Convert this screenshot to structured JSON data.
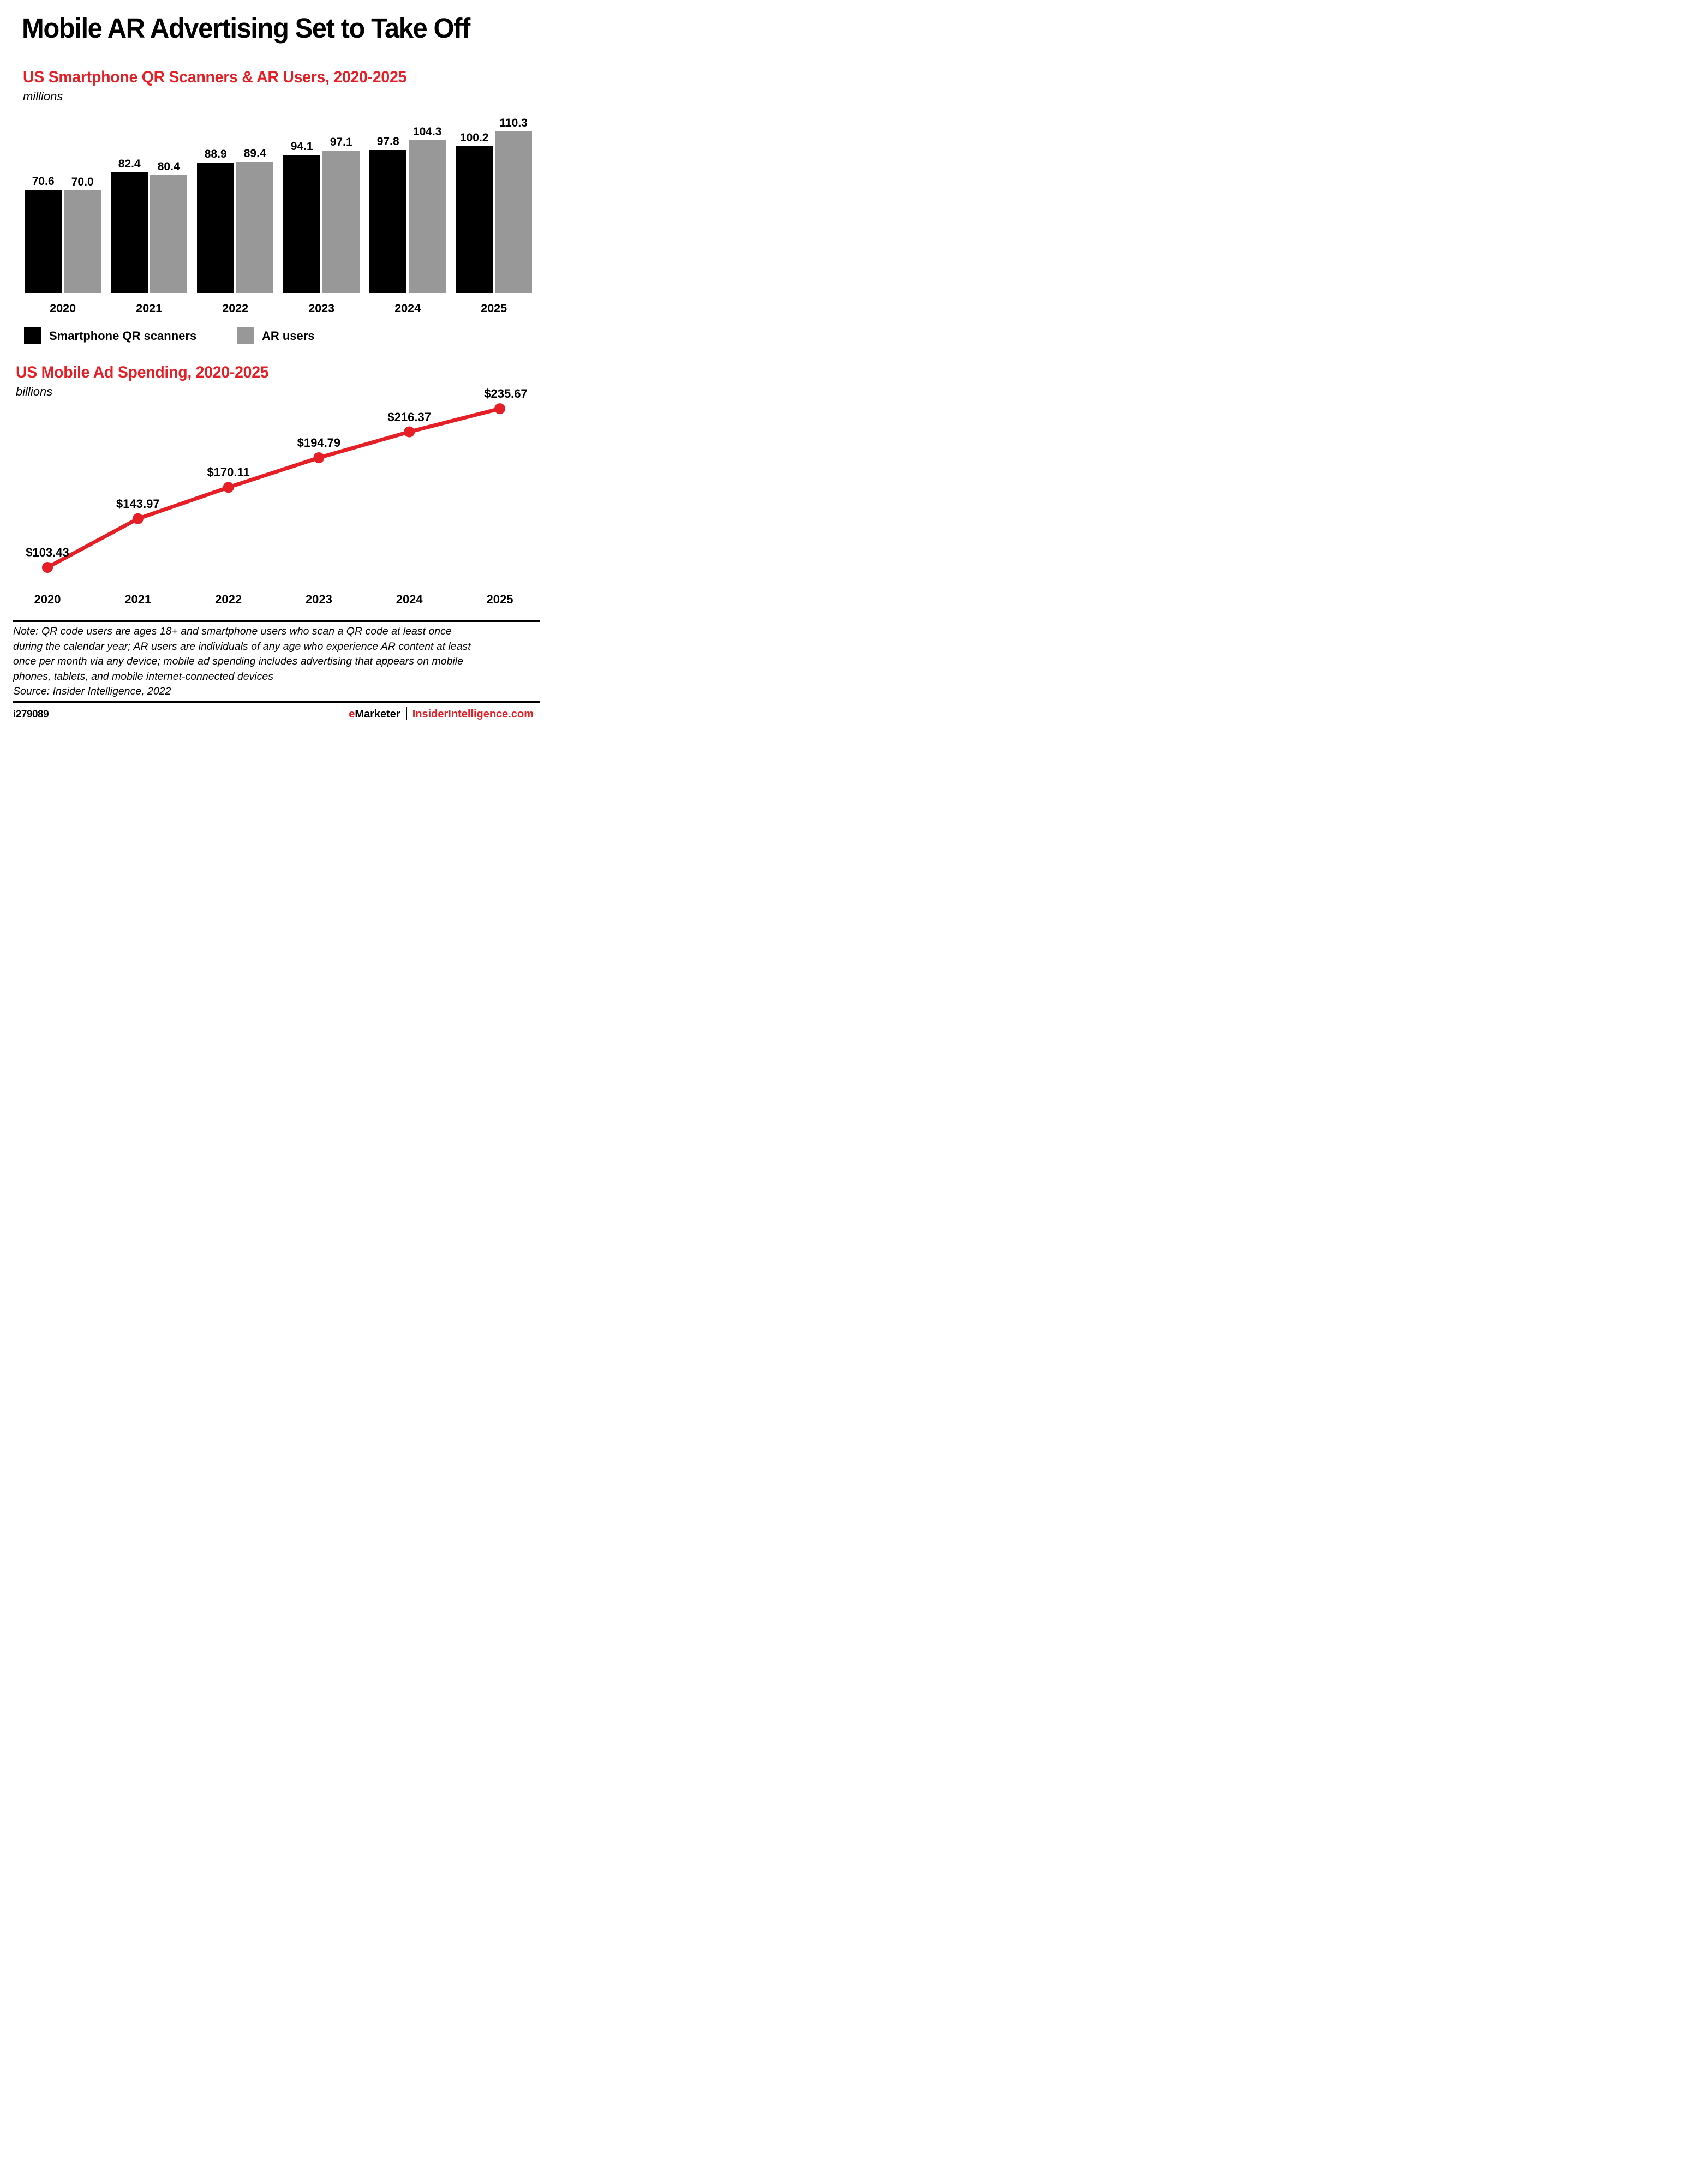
{
  "title": "Mobile AR Advertising Set to Take Off",
  "colors": {
    "accent": "#E61E25",
    "bar_black": "#000000",
    "bar_gray": "#989898",
    "background": "#FFFFFF",
    "text": "#000000"
  },
  "chart_data": [
    {
      "type": "bar",
      "title": "US Smartphone QR Scanners & AR Users, 2020-2025",
      "unit": "millions",
      "categories": [
        "2020",
        "2021",
        "2022",
        "2023",
        "2024",
        "2025"
      ],
      "series": [
        {
          "name": "Smartphone QR scanners",
          "color": "#000000",
          "values": [
            70.6,
            82.4,
            88.9,
            94.1,
            97.8,
            100.2
          ]
        },
        {
          "name": "AR users",
          "color": "#989898",
          "values": [
            70.0,
            80.4,
            89.4,
            97.1,
            104.3,
            110.3
          ]
        }
      ],
      "ylim": [
        0,
        110.3
      ],
      "grid": false,
      "data_labels_shown": true,
      "legend_position": "bottom"
    },
    {
      "type": "line",
      "title": "US Mobile Ad Spending, 2020-2025",
      "unit": "billions",
      "categories": [
        "2020",
        "2021",
        "2022",
        "2023",
        "2024",
        "2025"
      ],
      "values": [
        103.43,
        143.97,
        170.11,
        194.79,
        216.37,
        235.67
      ],
      "data_labels": [
        "$103.43",
        "$143.97",
        "$170.11",
        "$194.79",
        "$216.37",
        "$235.67"
      ],
      "color": "#E61E25",
      "ylim": [
        103.43,
        235.67
      ],
      "grid": false,
      "legend_position": "none"
    }
  ],
  "note": {
    "lines": [
      "Note: QR code users are ages 18+ and smartphone users who scan a QR code at least once",
      "during the calendar year; AR users are individuals of any age who experience AR content at least",
      "once per month via any device; mobile ad spending includes advertising that appears on mobile",
      "phones, tablets, and mobile internet-connected devices"
    ]
  },
  "source": "Source: Insider Intelligence, 2022",
  "footer": {
    "id": "i279089",
    "brand": {
      "prefix_red": "e",
      "name_black": "Marketer",
      "site": "InsiderIntelligence.com"
    }
  }
}
